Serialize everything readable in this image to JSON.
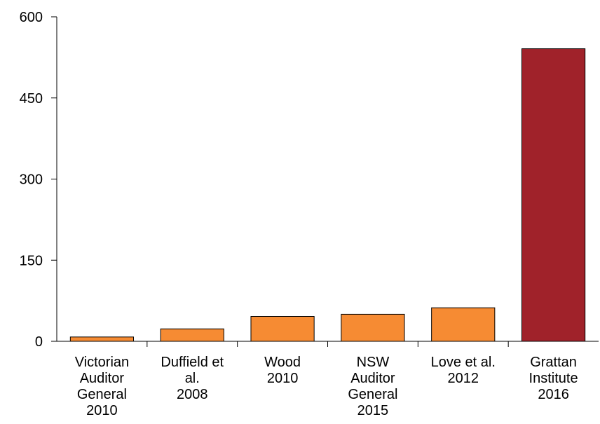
{
  "chart_data": {
    "type": "bar",
    "categories": [
      [
        "Victorian",
        "Auditor",
        "General",
        "2010"
      ],
      [
        "Duffield et",
        "al.",
        "2008"
      ],
      [
        "Wood",
        "2010"
      ],
      [
        "NSW",
        "Auditor",
        "General",
        "2015"
      ],
      [
        "Love et al.",
        "2012"
      ],
      [
        "Grattan",
        "Institute",
        "2016"
      ]
    ],
    "values": [
      8,
      23,
      46,
      50,
      62,
      541
    ],
    "bar_colors": [
      "#f68b33",
      "#f68b33",
      "#f68b33",
      "#f68b33",
      "#f68b33",
      "#a0222a"
    ],
    "bar_stroke": "#000000",
    "ylim": [
      0,
      600
    ],
    "yticks": [
      0,
      150,
      300,
      450,
      600
    ],
    "title": "",
    "xlabel": "",
    "ylabel": "",
    "grid": false,
    "legend": null
  }
}
